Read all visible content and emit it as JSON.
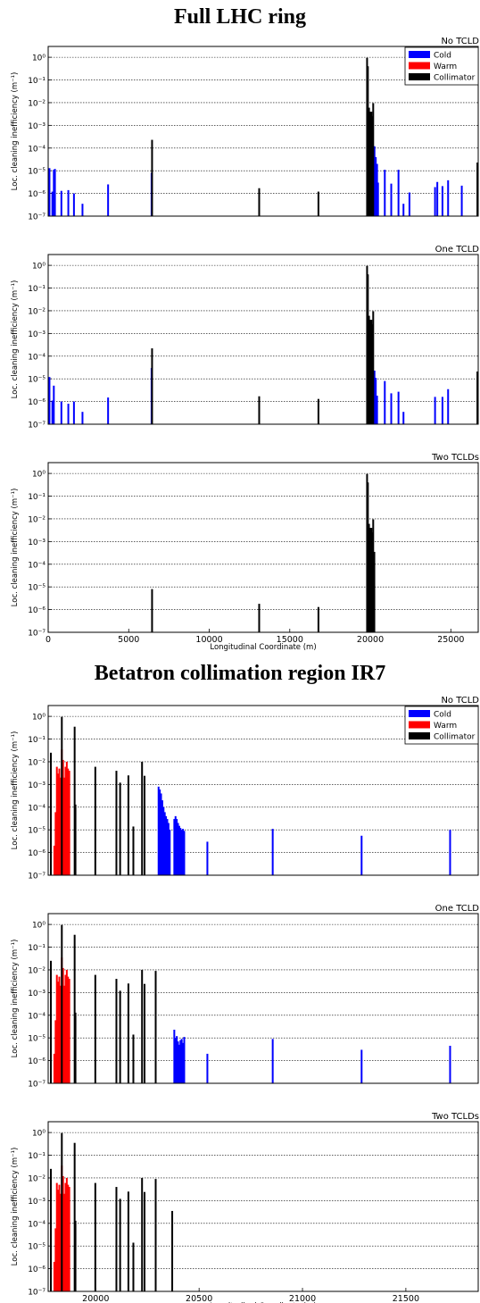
{
  "sections": [
    {
      "title": "Full LHC ring"
    },
    {
      "title": "Betatron collimation region IR7"
    }
  ],
  "colors": {
    "Cold": "#0000ff",
    "Warm": "#ff0000",
    "Collimator": "#000000"
  },
  "chart_data": [
    {
      "type": "bar",
      "panel_title": "No TCLD",
      "section": 0,
      "xlim": [
        0,
        26700
      ],
      "ylim": [
        1e-07,
        3
      ],
      "yscale": "log",
      "ylabel": "Loc. cleaning inefficiency (m⁻¹)",
      "xlabel": "",
      "xticks": [],
      "grid": "y",
      "legend": "top-right",
      "legend_entries": [
        "Cold",
        "Warm",
        "Collimator"
      ],
      "series": [
        {
          "name": "Cold",
          "points": [
            [
              80,
              1.3e-05
            ],
            [
              260,
              1.2e-06
            ],
            [
              350,
              1.1e-05
            ],
            [
              420,
              1.2e-05
            ],
            [
              820,
              1.3e-06
            ],
            [
              1250,
              1.4e-06
            ],
            [
              1600,
              1e-06
            ],
            [
              2130,
              3.5e-07
            ],
            [
              3720,
              2.5e-06
            ],
            [
              6420,
              8e-06
            ],
            [
              19920,
              0.002
            ],
            [
              20150,
              0.0006
            ],
            [
              20260,
              0.00012
            ],
            [
              20340,
              4e-05
            ],
            [
              20420,
              2e-05
            ],
            [
              20480,
              3e-06
            ],
            [
              20900,
              1.1e-05
            ],
            [
              21300,
              2.7e-06
            ],
            [
              21750,
              1.1e-05
            ],
            [
              22060,
              3.5e-07
            ],
            [
              22430,
              1.1e-06
            ],
            [
              24020,
              1.9e-06
            ],
            [
              24160,
              3.2e-06
            ],
            [
              24480,
              2.1e-06
            ],
            [
              24830,
              3.8e-06
            ],
            [
              25680,
              2.2e-06
            ]
          ]
        },
        {
          "name": "Warm",
          "points": []
        },
        {
          "name": "Collimator",
          "points": [
            [
              6450,
              0.00023
            ],
            [
              13100,
              1.7e-06
            ],
            [
              16780,
              1.2e-06
            ],
            [
              19800,
              0.95
            ],
            [
              19850,
              0.4
            ],
            [
              19920,
              0.006
            ],
            [
              19980,
              0.004
            ],
            [
              20070,
              0.004
            ],
            [
              20120,
              0.0025
            ],
            [
              20180,
              0.0095
            ],
            [
              26650,
              2.3e-05
            ]
          ]
        }
      ]
    },
    {
      "type": "bar",
      "panel_title": "One TCLD",
      "section": 0,
      "xlim": [
        0,
        26700
      ],
      "ylim": [
        1e-07,
        3
      ],
      "yscale": "log",
      "ylabel": "Loc. cleaning inefficiency (m⁻¹)",
      "xlabel": "",
      "xticks": [],
      "grid": "y",
      "series": [
        {
          "name": "Cold",
          "points": [
            [
              80,
              1.2e-05
            ],
            [
              260,
              1.1e-06
            ],
            [
              350,
              5e-06
            ],
            [
              820,
              1e-06
            ],
            [
              1250,
              8e-07
            ],
            [
              1600,
              1e-06
            ],
            [
              2130,
              3.5e-07
            ],
            [
              3720,
              1.5e-06
            ],
            [
              6420,
              3e-05
            ],
            [
              20260,
              2.3e-05
            ],
            [
              20340,
              1.1e-05
            ],
            [
              20420,
              1.8e-06
            ],
            [
              20900,
              8e-06
            ],
            [
              21300,
              2.3e-06
            ],
            [
              21750,
              2.7e-06
            ],
            [
              22060,
              3.5e-07
            ],
            [
              24020,
              1.6e-06
            ],
            [
              24480,
              1.6e-06
            ],
            [
              24830,
              3.5e-06
            ]
          ]
        },
        {
          "name": "Warm",
          "points": []
        },
        {
          "name": "Collimator",
          "points": [
            [
              6450,
              0.00022
            ],
            [
              13100,
              1.7e-06
            ],
            [
              16780,
              1.3e-06
            ],
            [
              19800,
              0.95
            ],
            [
              19850,
              0.4
            ],
            [
              19920,
              0.006
            ],
            [
              19980,
              0.004
            ],
            [
              20070,
              0.004
            ],
            [
              20120,
              0.0025
            ],
            [
              20180,
              0.0095
            ],
            [
              26650,
              2.1e-05
            ]
          ]
        }
      ]
    },
    {
      "type": "bar",
      "panel_title": "Two TCLDs",
      "section": 0,
      "xlim": [
        0,
        26700
      ],
      "ylim": [
        1e-07,
        3
      ],
      "yscale": "log",
      "ylabel": "Loc. cleaning inefficiency (m⁻¹)",
      "xlabel": "Longitudinal Coordinate (m)",
      "xticks": [
        0,
        5000,
        10000,
        15000,
        20000,
        25000
      ],
      "grid": "y",
      "series": [
        {
          "name": "Cold",
          "points": []
        },
        {
          "name": "Warm",
          "points": []
        },
        {
          "name": "Collimator",
          "points": [
            [
              6450,
              8e-06
            ],
            [
              13100,
              1.8e-06
            ],
            [
              16780,
              1.3e-06
            ],
            [
              19800,
              0.95
            ],
            [
              19850,
              0.4
            ],
            [
              19920,
              0.006
            ],
            [
              19980,
              0.004
            ],
            [
              20070,
              0.004
            ],
            [
              20120,
              0.0025
            ],
            [
              20180,
              0.0095
            ],
            [
              20250,
              0.00035
            ]
          ]
        }
      ]
    },
    {
      "type": "bar",
      "panel_title": "No TCLD",
      "section": 1,
      "xlim": [
        19770,
        21850
      ],
      "ylim": [
        1e-07,
        3
      ],
      "yscale": "log",
      "ylabel": "Loc. cleaning inefficiency (m⁻¹)",
      "xlabel": "",
      "xticks": [],
      "grid": "y",
      "legend": "top-right",
      "legend_entries": [
        "Cold",
        "Warm",
        "Collimator"
      ],
      "series": [
        {
          "name": "Cold",
          "points": [
            [
              20304,
              0.0008
            ],
            [
              20310,
              0.0006
            ],
            [
              20316,
              0.0004
            ],
            [
              20322,
              0.0002
            ],
            [
              20328,
              0.0001
            ],
            [
              20334,
              6e-05
            ],
            [
              20340,
              4e-05
            ],
            [
              20346,
              3e-05
            ],
            [
              20352,
              2e-05
            ],
            [
              20358,
              1e-05
            ],
            [
              20380,
              3e-05
            ],
            [
              20386,
              4e-05
            ],
            [
              20392,
              3e-05
            ],
            [
              20398,
              2e-05
            ],
            [
              20404,
              1.5e-05
            ],
            [
              20410,
              1.2e-05
            ],
            [
              20416,
              1e-05
            ],
            [
              20422,
              1.1e-05
            ],
            [
              20428,
              9e-06
            ],
            [
              20540,
              3e-06
            ],
            [
              20856,
              1.1e-05
            ],
            [
              21286,
              5.5e-06
            ],
            [
              21714,
              1e-05
            ]
          ]
        },
        {
          "name": "Warm",
          "points": [
            [
              19800,
              2e-06
            ],
            [
              19806,
              6e-05
            ],
            [
              19812,
              0.006
            ],
            [
              19818,
              0.003
            ],
            [
              19824,
              0.005
            ],
            [
              19830,
              0.002
            ],
            [
              19836,
              0.035
            ],
            [
              19842,
              0.012
            ],
            [
              19848,
              0.002
            ],
            [
              19854,
              0.006
            ],
            [
              19860,
              0.01
            ],
            [
              19866,
              0.005
            ],
            [
              19872,
              0.004
            ]
          ]
        },
        {
          "name": "Collimator",
          "points": [
            [
              19783,
              0.025
            ],
            [
              19836,
              0.95
            ],
            [
              19898,
              0.35
            ],
            [
              19902,
              0.00013
            ],
            [
              19998,
              0.006
            ],
            [
              20100,
              0.004
            ],
            [
              20118,
              0.0012
            ],
            [
              20158,
              0.0025
            ],
            [
              20182,
              1.4e-05
            ],
            [
              20224,
              0.01
            ],
            [
              20236,
              0.0024
            ]
          ]
        }
      ]
    },
    {
      "type": "bar",
      "panel_title": "One TCLD",
      "section": 1,
      "xlim": [
        19770,
        21850
      ],
      "ylim": [
        1e-07,
        3
      ],
      "yscale": "log",
      "ylabel": "Loc. cleaning inefficiency (m⁻¹)",
      "xlabel": "",
      "xticks": [],
      "grid": "y",
      "series": [
        {
          "name": "Cold",
          "points": [
            [
              20380,
              2.3e-05
            ],
            [
              20386,
              1e-05
            ],
            [
              20392,
              1.2e-05
            ],
            [
              20398,
              7e-06
            ],
            [
              20404,
              5e-06
            ],
            [
              20410,
              8e-06
            ],
            [
              20416,
              9e-06
            ],
            [
              20422,
              6e-06
            ],
            [
              20428,
              1.1e-05
            ],
            [
              20540,
              2e-06
            ],
            [
              20856,
              9e-06
            ],
            [
              21286,
              3e-06
            ],
            [
              21714,
              4.5e-06
            ]
          ]
        },
        {
          "name": "Warm",
          "points": [
            [
              19800,
              2e-06
            ],
            [
              19806,
              6e-05
            ],
            [
              19812,
              0.006
            ],
            [
              19818,
              0.003
            ],
            [
              19824,
              0.005
            ],
            [
              19830,
              0.002
            ],
            [
              19836,
              0.035
            ],
            [
              19842,
              0.012
            ],
            [
              19848,
              0.002
            ],
            [
              19854,
              0.006
            ],
            [
              19860,
              0.01
            ],
            [
              19866,
              0.005
            ],
            [
              19872,
              0.004
            ]
          ]
        },
        {
          "name": "Collimator",
          "points": [
            [
              19783,
              0.025
            ],
            [
              19836,
              0.95
            ],
            [
              19898,
              0.35
            ],
            [
              19902,
              0.00013
            ],
            [
              19998,
              0.006
            ],
            [
              20100,
              0.004
            ],
            [
              20118,
              0.0012
            ],
            [
              20158,
              0.0025
            ],
            [
              20182,
              1.4e-05
            ],
            [
              20224,
              0.01
            ],
            [
              20236,
              0.0024
            ],
            [
              20290,
              0.009
            ]
          ]
        }
      ]
    },
    {
      "type": "bar",
      "panel_title": "Two TCLDs",
      "section": 1,
      "xlim": [
        19770,
        21850
      ],
      "ylim": [
        1e-07,
        3
      ],
      "yscale": "log",
      "ylabel": "Loc. cleaning inefficiency (m⁻¹)",
      "xlabel": "Longitudinal Coordinate (m)",
      "xticks": [
        20000,
        20500,
        21000,
        21500
      ],
      "grid": "y",
      "series": [
        {
          "name": "Cold",
          "points": []
        },
        {
          "name": "Warm",
          "points": [
            [
              19800,
              2e-06
            ],
            [
              19806,
              6e-05
            ],
            [
              19812,
              0.006
            ],
            [
              19818,
              0.003
            ],
            [
              19824,
              0.005
            ],
            [
              19830,
              0.002
            ],
            [
              19836,
              0.035
            ],
            [
              19842,
              0.012
            ],
            [
              19848,
              0.002
            ],
            [
              19854,
              0.006
            ],
            [
              19860,
              0.01
            ],
            [
              19866,
              0.005
            ],
            [
              19872,
              0.004
            ]
          ]
        },
        {
          "name": "Collimator",
          "points": [
            [
              19783,
              0.025
            ],
            [
              19836,
              0.95
            ],
            [
              19898,
              0.35
            ],
            [
              19902,
              0.00013
            ],
            [
              19998,
              0.006
            ],
            [
              20100,
              0.004
            ],
            [
              20118,
              0.0012
            ],
            [
              20158,
              0.0025
            ],
            [
              20182,
              1.4e-05
            ],
            [
              20224,
              0.01
            ],
            [
              20236,
              0.0024
            ],
            [
              20290,
              0.009
            ],
            [
              20370,
              0.00035
            ]
          ]
        }
      ]
    }
  ]
}
